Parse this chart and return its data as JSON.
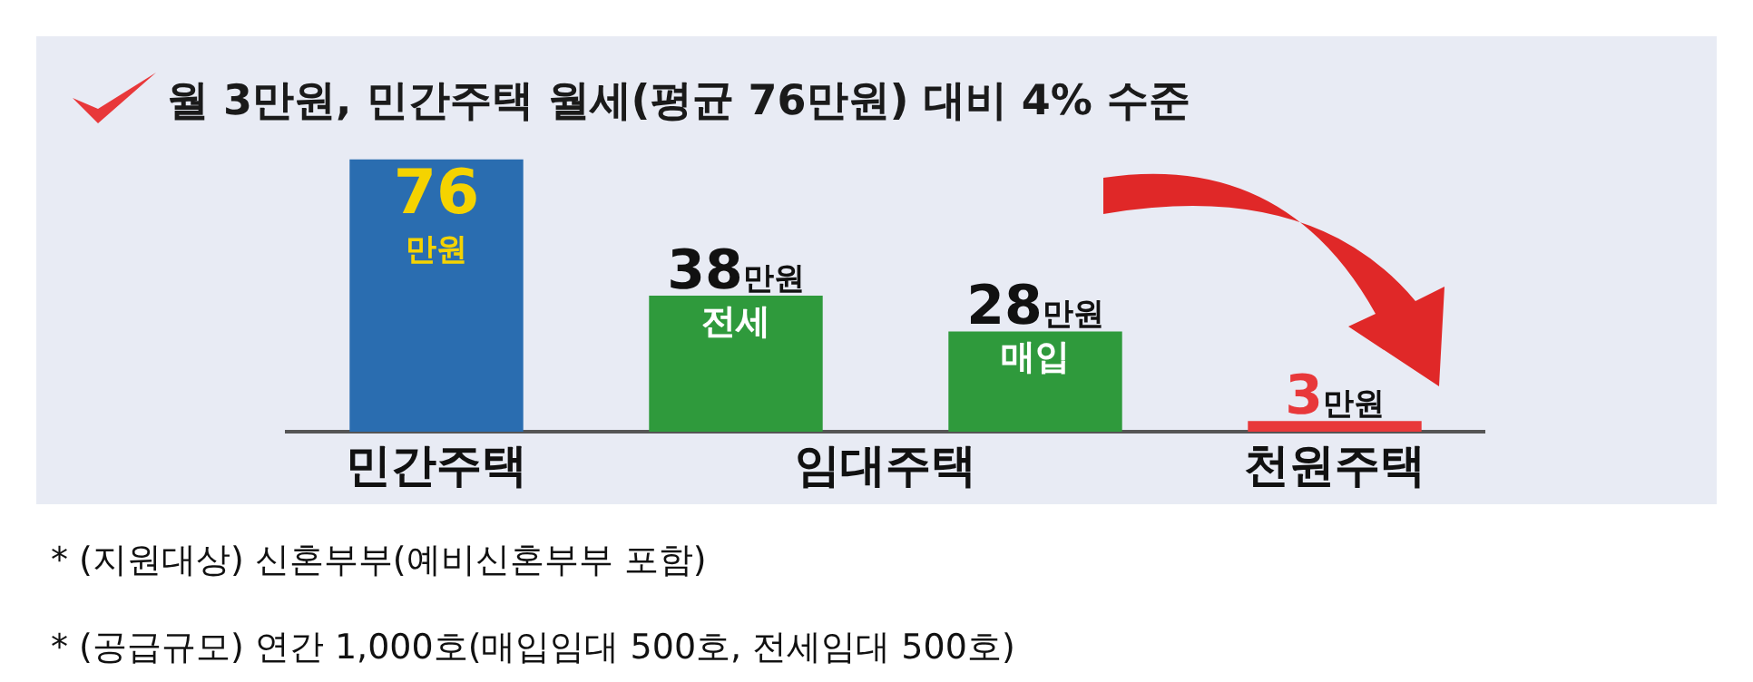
{
  "chart_data": {
    "type": "bar",
    "title": "월 3만원, 민간주택 월세(평균 76만원) 대비 4% 수준",
    "categories": [
      null,
      "전세",
      "매입",
      null
    ],
    "values": [
      76,
      38,
      28,
      3
    ],
    "colors": [
      "#2a6db0",
      "#2f9a3c",
      "#2f9a3c",
      "#e8383a"
    ],
    "value_labels": [
      "76만원",
      "38만원",
      "28만원",
      "3만원"
    ],
    "tick_labels": false,
    "legend": false,
    "grid": false,
    "annotations": [
      "민간주택",
      "임대주택",
      "천원주택",
      "* (지원대상) 신혼부부(예비신혼부부 포함)",
      "* (공급규모) 연간 1,000호(매입임대 500호, 전세임대 500호)"
    ]
  }
}
